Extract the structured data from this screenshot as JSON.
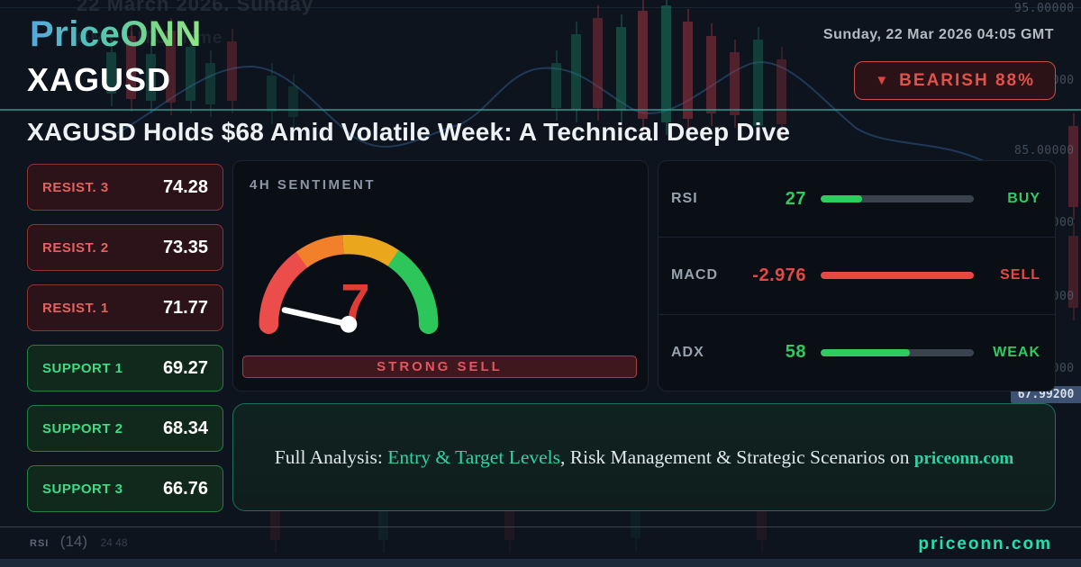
{
  "brand": {
    "logo": "PriceONN",
    "footer_url": "priceonn.com"
  },
  "header": {
    "datetime": "Sunday, 22 Mar 2026 04:05 GMT",
    "symbol": "XAGUSD",
    "badge": {
      "icon": "down-triangle",
      "label": "BEARISH 88%"
    }
  },
  "headline": "XAGUSD Holds $68 Amid Volatile Week: A Technical Deep Dive",
  "levels": {
    "items": [
      {
        "label": "RESIST. 3",
        "value": "74.28",
        "kind": "resistance"
      },
      {
        "label": "RESIST. 2",
        "value": "73.35",
        "kind": "resistance"
      },
      {
        "label": "RESIST. 1",
        "value": "71.77",
        "kind": "resistance"
      },
      {
        "label": "SUPPORT 1",
        "value": "69.27",
        "kind": "support"
      },
      {
        "label": "SUPPORT 2",
        "value": "68.34",
        "kind": "support"
      },
      {
        "label": "SUPPORT 3",
        "value": "66.76",
        "kind": "support"
      }
    ]
  },
  "sentiment": {
    "title": "4H SENTIMENT",
    "value": 7,
    "scale_max": 100,
    "signal": "STRONG SELL",
    "gauge_colors": [
      "#ea4d4a",
      "#f2802b",
      "#eaa71e",
      "#2dc65a"
    ]
  },
  "indicators": [
    {
      "name": "RSI",
      "value": "27",
      "signal": "BUY",
      "percent": 27,
      "tone": "green"
    },
    {
      "name": "MACD",
      "value": "-2.976",
      "signal": "SELL",
      "percent": 100,
      "tone": "red"
    },
    {
      "name": "ADX",
      "value": "58",
      "signal": "WEAK",
      "percent": 58,
      "tone": "green"
    }
  ],
  "banner": {
    "prefix": "Full Analysis: ",
    "highlight": "Entry & Target Levels",
    "middle": ", Risk Management & Strategic Scenarios on ",
    "site": "priceonn.com"
  },
  "background": {
    "note_line1": "22 March 2026. Sunday",
    "note_line2": "GMT (UTC) Time",
    "price_scale": [
      "95.00000",
      "90.00000",
      "85.00000",
      "80.00000",
      "75.00000",
      "70.00000"
    ],
    "current_price": "67.99200",
    "rsi_label": "RSI",
    "rsi_period": "(14)",
    "rsi_values": "24 48"
  },
  "colors": {
    "accent_teal": "#2dd4a8",
    "bearish_red": "#e0524a",
    "bullish_green": "#2ecc5e",
    "background_navy": "#0d141e"
  }
}
